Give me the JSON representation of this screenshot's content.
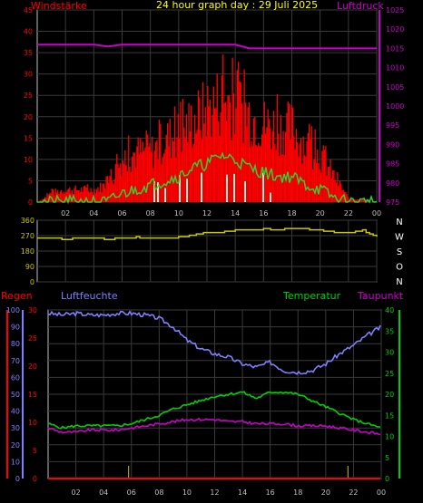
{
  "colors": {
    "background": "#000000",
    "grid": "#3a3a3a",
    "frame": "#bfbfbf",
    "wind": "#ff0000",
    "gust": "#ff2020",
    "avg_wind": "#30d030",
    "pressure": "#cc00cc",
    "direction": "#c8c800",
    "rain": "#ff0000",
    "humidity": "#7f7fff",
    "temperature": "#00d000",
    "dewpoint": "#cc00cc",
    "title": "#ffff00",
    "light_bars": "#e8f0d8"
  },
  "top": {
    "title": "24 hour graph day : 29 Juli 2025",
    "left_label": "Windstärke",
    "right_label": "Luftdruck"
  },
  "middle": {
    "compass": [
      "N",
      "W",
      "S",
      "O",
      "N"
    ]
  },
  "bottom": {
    "rain_label": "Regen",
    "humidity_label": "Luftfeuchte",
    "temperature_label": "Temperatur",
    "dewpoint_label": "Taupunkt"
  },
  "chart_data": [
    {
      "type": "bar",
      "name": "wind",
      "title": "24 hour graph day : 29 Juli 2025",
      "ylabel": "Windstärke",
      "y2label": "Luftdruck",
      "x_ticks": [
        "02",
        "04",
        "06",
        "08",
        "10",
        "12",
        "14",
        "16",
        "18",
        "20",
        "22",
        "00"
      ],
      "y_ticks": [
        "0",
        "5",
        "10",
        "15",
        "20",
        "25",
        "30",
        "35",
        "40",
        "45"
      ],
      "y2_ticks": [
        "975",
        "980",
        "985",
        "990",
        "995",
        "1000",
        "1005",
        "1010",
        "1015",
        "1020",
        "1025"
      ],
      "ylim": [
        0,
        45
      ],
      "y2lim": [
        975,
        1025
      ],
      "hours": [
        0,
        1,
        2,
        3,
        4,
        5,
        6,
        7,
        8,
        9,
        10,
        11,
        12,
        13,
        14,
        15,
        16,
        17,
        18,
        19,
        20,
        21,
        22,
        23,
        24
      ],
      "gust_max": [
        0,
        3,
        4,
        4,
        4,
        6,
        14,
        16,
        16,
        20,
        22,
        26,
        30,
        33,
        32,
        28,
        25,
        24,
        24,
        18,
        15,
        8,
        1,
        1,
        0
      ],
      "wind_avg": [
        0,
        0,
        0,
        0,
        0,
        0,
        2,
        3,
        4,
        5,
        6,
        8,
        9,
        11,
        10,
        8,
        7,
        6,
        6,
        4,
        3,
        1,
        0,
        0,
        0
      ],
      "pressure": [
        1016,
        1016,
        1016,
        1016,
        1016,
        1015.5,
        1016,
        1016,
        1016,
        1016,
        1016,
        1016,
        1016,
        1016,
        1016,
        1015,
        1015,
        1015,
        1015,
        1015,
        1015,
        1015,
        1015,
        1015,
        1015
      ]
    },
    {
      "type": "line",
      "name": "wind_direction",
      "y_ticks": [
        "0",
        "90",
        "180",
        "270",
        "360"
      ],
      "ylim": [
        0,
        360
      ],
      "hours": [
        0,
        1,
        2,
        3,
        4,
        5,
        6,
        7,
        8,
        9,
        10,
        11,
        12,
        13,
        14,
        15,
        16,
        17,
        18,
        19,
        20,
        21,
        22,
        23,
        24
      ],
      "direction": [
        255,
        255,
        250,
        255,
        255,
        250,
        255,
        260,
        255,
        255,
        260,
        275,
        290,
        290,
        300,
        300,
        310,
        305,
        315,
        310,
        300,
        290,
        285,
        300,
        260
      ]
    },
    {
      "type": "line",
      "name": "weather",
      "y_rain_ticks": [
        "0",
        "5",
        "10",
        "15",
        "20",
        "25",
        "30"
      ],
      "y_hum_ticks": [
        "0",
        "10",
        "20",
        "30",
        "40",
        "50",
        "60",
        "70",
        "80",
        "90",
        "100"
      ],
      "y_temp_ticks": [
        "0",
        "5",
        "10",
        "15",
        "20",
        "25",
        "30",
        "35",
        "40"
      ],
      "rain_lim": [
        0,
        30
      ],
      "humidity_lim": [
        0,
        100
      ],
      "temp_lim": [
        0,
        40
      ],
      "hours": [
        0,
        1,
        2,
        3,
        4,
        5,
        6,
        7,
        8,
        9,
        10,
        11,
        12,
        13,
        14,
        15,
        16,
        17,
        18,
        19,
        20,
        21,
        22,
        23,
        24
      ],
      "humidity": [
        98,
        97,
        98,
        97,
        97,
        98,
        98,
        97,
        95,
        90,
        82,
        77,
        74,
        72,
        68,
        66,
        69,
        64,
        63,
        64,
        68,
        74,
        79,
        85,
        90
      ],
      "temperature": [
        13,
        12,
        12.5,
        12.5,
        12.5,
        12.5,
        13,
        14,
        15,
        16.5,
        17.5,
        18.5,
        19.5,
        20,
        20.5,
        19,
        20.5,
        20.5,
        20,
        18.5,
        17,
        15.5,
        14,
        13,
        12
      ],
      "dewpoint": [
        12,
        11,
        11,
        11.5,
        11.5,
        11.5,
        12,
        12.5,
        13,
        13.5,
        14,
        14,
        14,
        13.5,
        13.5,
        13,
        13,
        13,
        12.5,
        12.5,
        12.5,
        12,
        11.5,
        11,
        10.5
      ],
      "rain": [
        0,
        0,
        0,
        0,
        0,
        0,
        0,
        0,
        0,
        0,
        0,
        0,
        0,
        0,
        0,
        0,
        0,
        0,
        0,
        0,
        0,
        0,
        0,
        0,
        0
      ]
    }
  ]
}
